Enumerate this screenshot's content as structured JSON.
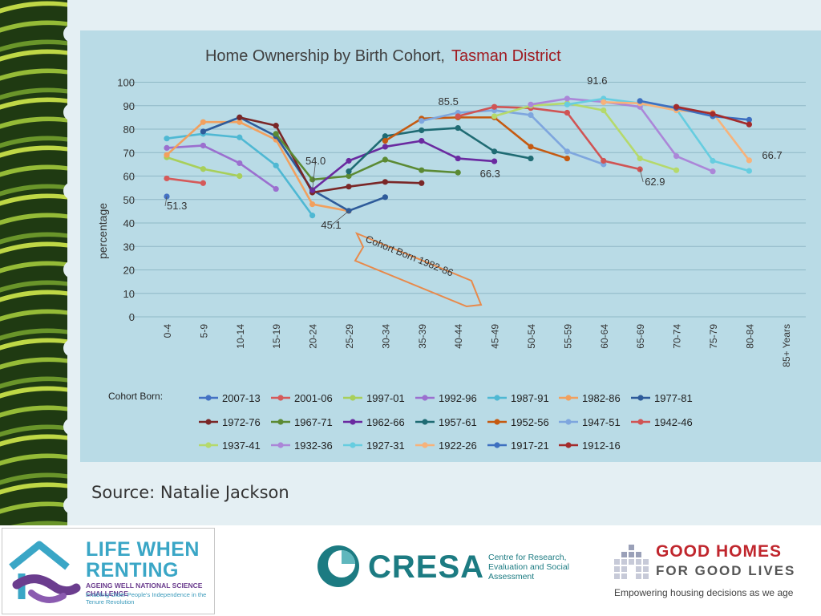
{
  "chart_data": {
    "type": "line",
    "title": "Home Ownership by Birth Cohort,",
    "title_region": "Tasman District",
    "ylabel": "percentage",
    "ylim": [
      0,
      100
    ],
    "yticks": [
      0,
      10,
      20,
      30,
      40,
      50,
      60,
      70,
      80,
      90,
      100
    ],
    "categories": [
      "0-4",
      "5-9",
      "10-14",
      "15-19",
      "20-24",
      "25-29",
      "30-34",
      "35-39",
      "40-44",
      "45-49",
      "50-54",
      "55-59",
      "60-64",
      "65-69",
      "70-74",
      "75-79",
      "80-84",
      "85+ Years"
    ],
    "legend_title": "Cohort Born:",
    "series": [
      {
        "name": "2007-13",
        "color": "#4472c4",
        "values": [
          51.3,
          null,
          null,
          null,
          null,
          null,
          null,
          null,
          null,
          null,
          null,
          null,
          null,
          null,
          null,
          null,
          null,
          null
        ]
      },
      {
        "name": "2001-06",
        "color": "#d55a5a",
        "values": [
          59,
          57,
          null,
          null,
          null,
          null,
          null,
          null,
          null,
          null,
          null,
          null,
          null,
          null,
          null,
          null,
          null,
          null
        ]
      },
      {
        "name": "1997-01",
        "color": "#a8cf5a",
        "values": [
          68,
          63,
          60,
          null,
          null,
          null,
          null,
          null,
          null,
          null,
          null,
          null,
          null,
          null,
          null,
          null,
          null,
          null
        ]
      },
      {
        "name": "1992-96",
        "color": "#9b6fcf",
        "values": [
          72,
          73,
          65.5,
          54.5,
          null,
          null,
          null,
          null,
          null,
          null,
          null,
          null,
          null,
          null,
          null,
          null,
          null,
          null
        ]
      },
      {
        "name": "1987-91",
        "color": "#4fb8d3",
        "values": [
          76,
          78,
          76.5,
          64.5,
          43.2,
          null,
          null,
          null,
          null,
          null,
          null,
          null,
          null,
          null,
          null,
          null,
          null,
          null
        ]
      },
      {
        "name": "1982-86",
        "color": "#f2a05e",
        "values": [
          69,
          83,
          83,
          75.5,
          48,
          45.1,
          null,
          null,
          null,
          null,
          null,
          null,
          null,
          null,
          null,
          null,
          null,
          null
        ]
      },
      {
        "name": "1977-81",
        "color": "#2e5b9a",
        "values": [
          null,
          79,
          85,
          77,
          54,
          45.2,
          51,
          null,
          null,
          null,
          null,
          null,
          null,
          null,
          null,
          null,
          null,
          null
        ]
      },
      {
        "name": "1972-76",
        "color": "#7a2727",
        "values": [
          null,
          null,
          85,
          81.5,
          53,
          55.5,
          57.5,
          57,
          null,
          null,
          null,
          null,
          null,
          null,
          null,
          null,
          null,
          null
        ]
      },
      {
        "name": "1967-71",
        "color": "#5b8a33",
        "values": [
          null,
          null,
          null,
          78,
          58.5,
          60,
          67,
          62.5,
          61.5,
          null,
          null,
          null,
          null,
          null,
          null,
          null,
          null,
          null
        ]
      },
      {
        "name": "1962-66",
        "color": "#6a2aa0",
        "values": [
          null,
          null,
          null,
          null,
          54,
          66.5,
          72.5,
          75,
          67.5,
          66.3,
          null,
          null,
          null,
          null,
          null,
          null,
          null,
          null
        ]
      },
      {
        "name": "1957-61",
        "color": "#1f6b73",
        "values": [
          null,
          null,
          null,
          null,
          null,
          62,
          77,
          79.5,
          80.5,
          70.5,
          67.5,
          null,
          null,
          null,
          null,
          null,
          null,
          null
        ]
      },
      {
        "name": "1952-56",
        "color": "#c55a11",
        "values": [
          null,
          null,
          null,
          null,
          null,
          null,
          75,
          84.5,
          85,
          85,
          72.5,
          67.5,
          null,
          null,
          null,
          null,
          null,
          null
        ]
      },
      {
        "name": "1947-51",
        "color": "#7ea6de",
        "values": [
          null,
          null,
          null,
          null,
          null,
          null,
          null,
          83.5,
          87,
          88,
          86,
          70.5,
          65,
          null,
          null,
          null,
          null,
          null
        ]
      },
      {
        "name": "1942-46",
        "color": "#d05454",
        "values": [
          null,
          null,
          null,
          null,
          null,
          null,
          null,
          null,
          85.5,
          89.5,
          89,
          87,
          66.5,
          62.9,
          null,
          null,
          null,
          null
        ]
      },
      {
        "name": "1937-41",
        "color": "#b5d96b",
        "values": [
          null,
          null,
          null,
          null,
          null,
          null,
          null,
          null,
          null,
          85.5,
          90,
          91,
          88,
          67.5,
          62.5,
          null,
          null,
          null
        ]
      },
      {
        "name": "1932-36",
        "color": "#ab86d8",
        "values": [
          null,
          null,
          null,
          null,
          null,
          null,
          null,
          null,
          null,
          null,
          90.5,
          93,
          91.6,
          89.5,
          68.5,
          62,
          null,
          null
        ]
      },
      {
        "name": "1927-31",
        "color": "#66cde0",
        "values": [
          null,
          null,
          null,
          null,
          null,
          null,
          null,
          null,
          null,
          null,
          null,
          90.5,
          93,
          91,
          88.5,
          66.5,
          62.2,
          null
        ]
      },
      {
        "name": "1922-26",
        "color": "#f7b27a",
        "values": [
          null,
          null,
          null,
          null,
          null,
          null,
          null,
          null,
          null,
          null,
          null,
          null,
          91.5,
          91,
          88,
          87,
          66.7,
          null
        ]
      },
      {
        "name": "1917-21",
        "color": "#3d6fc0",
        "values": [
          null,
          null,
          null,
          null,
          null,
          null,
          null,
          null,
          null,
          null,
          null,
          null,
          null,
          92,
          89,
          85.5,
          84,
          null
        ]
      },
      {
        "name": "1912-16",
        "color": "#a42b2b",
        "values": [
          null,
          null,
          null,
          null,
          null,
          null,
          null,
          null,
          null,
          null,
          null,
          null,
          null,
          null,
          89.5,
          86.5,
          82,
          null
        ]
      }
    ],
    "annotations": [
      {
        "text": "51.3",
        "series": "2007-13",
        "cat": 0
      },
      {
        "text": "54.0",
        "series": "1962-66",
        "cat": 4
      },
      {
        "text": "45.1",
        "series": "1982-86",
        "cat": 5
      },
      {
        "text": "85.5",
        "series": "1942-46",
        "cat": 8
      },
      {
        "text": "66.3",
        "series": "1962-66",
        "cat": 9
      },
      {
        "text": "91.6",
        "series": "1932-36",
        "cat": 12
      },
      {
        "text": "62.9",
        "series": "1942-46",
        "cat": 13
      },
      {
        "text": "66.7",
        "series": "1922-26",
        "cat": 16
      }
    ],
    "callout_text": "Cohort Born 1982-86"
  },
  "source": "Source: Natalie Jackson",
  "footer": {
    "lwr_line1": "LIFE WHEN",
    "lwr_line2": "RENTING",
    "lwr_tag": "AGEING WELL NATIONAL SCIENCE CHALLENGE",
    "lwr_sub": "Enabling Older People's Independence in the Tenure Revolution",
    "cresa_name": "CRESA",
    "cresa_sub": "Centre for Research, Evaluation and Social Assessment",
    "ghgl_line1": "GOOD HOMES",
    "ghgl_line2": "FOR GOOD LIVES",
    "ghgl_tagline": "Empowering housing decisions as we age"
  }
}
